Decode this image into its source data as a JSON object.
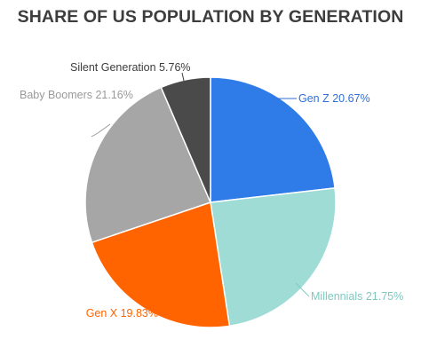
{
  "chart_data": {
    "type": "pie",
    "title": "SHARE OF US POPULATION BY GENERATION",
    "slices": [
      {
        "name": "Gen Z",
        "value": 20.67,
        "label": "Gen Z 20.67%",
        "color": "#2f7be8",
        "label_color": "#2f6fd6"
      },
      {
        "name": "Millennials",
        "value": 21.75,
        "label": "Millennials 21.75%",
        "color": "#9fdcd6",
        "label_color": "#7ec9c1"
      },
      {
        "name": "Gen X",
        "value": 19.83,
        "label": "Gen X 19.83%",
        "color": "#ff6400",
        "label_color": "#ff6400"
      },
      {
        "name": "Baby Boomers",
        "value": 21.16,
        "label": "Baby Boomers 21.16%",
        "color": "#a6a6a6",
        "label_color": "#9a9a9a"
      },
      {
        "name": "Silent Generation",
        "value": 5.76,
        "label": "Silent Generation 5.76%",
        "color": "#4a4a4a",
        "label_color": "#3d3d3d"
      }
    ]
  }
}
